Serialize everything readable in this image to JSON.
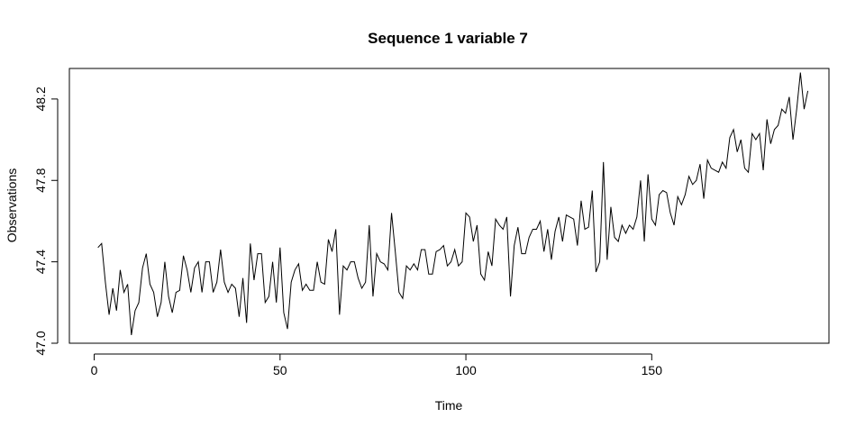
{
  "chart_data": {
    "type": "line",
    "title": "Sequence  1  variable  7",
    "xlabel": "Time",
    "ylabel": "Observations",
    "xlim": [
      -6.68,
      197.68
    ],
    "ylim": [
      47.0,
      48.35
    ],
    "xticks": [
      0,
      50,
      100,
      150
    ],
    "xtick_labels": [
      "0",
      "50",
      "100",
      "150"
    ],
    "yticks": [
      47.0,
      47.4,
      47.8,
      48.2
    ],
    "ytick_labels": [
      "47.0",
      "47.4",
      "47.8",
      "48.2"
    ],
    "grid": false,
    "series": [
      {
        "x": [
          1,
          2,
          3,
          4,
          5,
          6,
          7,
          8,
          9,
          10,
          11,
          12,
          13,
          14,
          15,
          16,
          17,
          18,
          19,
          20,
          21,
          22,
          23,
          24,
          25,
          26,
          27,
          28,
          29,
          30,
          31,
          32,
          33,
          34,
          35,
          36,
          37,
          38,
          39,
          40,
          41,
          42,
          43,
          44,
          45,
          46,
          47,
          48,
          49,
          50,
          51,
          52,
          53,
          54,
          55,
          56,
          57,
          58,
          59,
          60,
          61,
          62,
          63,
          64,
          65,
          66,
          67,
          68,
          69,
          70,
          71,
          72,
          73,
          74,
          75,
          76,
          77,
          78,
          79,
          80,
          81,
          82,
          83,
          84,
          85,
          86,
          87,
          88,
          89,
          90,
          91,
          92,
          93,
          94,
          95,
          96,
          97,
          98,
          99,
          100,
          101,
          102,
          103,
          104,
          105,
          106,
          107,
          108,
          109,
          110,
          111,
          112,
          113,
          114,
          115,
          116,
          117,
          118,
          119,
          120,
          121,
          122,
          123,
          124,
          125,
          126,
          127,
          128,
          129,
          130,
          131,
          132,
          133,
          134,
          135,
          136,
          137,
          138,
          139,
          140,
          141,
          142,
          143,
          144,
          145,
          146,
          147,
          148,
          149,
          150,
          151,
          152,
          153,
          154,
          155,
          156,
          157,
          158,
          159,
          160,
          161,
          162,
          163,
          164,
          165,
          166,
          167,
          168,
          169,
          170,
          171,
          172,
          173,
          174,
          175,
          176,
          177,
          178,
          179,
          180,
          181,
          182,
          183,
          184,
          185,
          186,
          187,
          188,
          189,
          190,
          191,
          192
        ],
        "y": [
          47.47,
          47.49,
          47.3,
          47.14,
          47.27,
          47.16,
          47.36,
          47.25,
          47.29,
          47.04,
          47.16,
          47.2,
          47.37,
          47.44,
          47.29,
          47.25,
          47.13,
          47.2,
          47.4,
          47.23,
          47.15,
          47.25,
          47.26,
          47.43,
          47.36,
          47.25,
          47.37,
          47.4,
          47.25,
          47.4,
          47.4,
          47.25,
          47.3,
          47.46,
          47.3,
          47.25,
          47.29,
          47.27,
          47.13,
          47.32,
          47.1,
          47.49,
          47.31,
          47.44,
          47.44,
          47.2,
          47.23,
          47.4,
          47.2,
          47.47,
          47.15,
          47.07,
          47.3,
          47.36,
          47.39,
          47.26,
          47.29,
          47.26,
          47.26,
          47.4,
          47.3,
          47.29,
          47.51,
          47.45,
          47.56,
          47.14,
          47.38,
          47.36,
          47.4,
          47.4,
          47.32,
          47.27,
          47.3,
          47.58,
          47.23,
          47.44,
          47.4,
          47.39,
          47.36,
          47.64,
          47.45,
          47.25,
          47.22,
          47.38,
          47.36,
          47.39,
          47.36,
          47.46,
          47.46,
          47.34,
          47.34,
          47.45,
          47.46,
          47.48,
          47.38,
          47.4,
          47.46,
          47.38,
          47.4,
          47.64,
          47.62,
          47.5,
          47.58,
          47.34,
          47.31,
          47.45,
          47.38,
          47.61,
          47.58,
          47.56,
          47.62,
          47.23,
          47.48,
          47.57,
          47.44,
          47.44,
          47.52,
          47.56,
          47.56,
          47.6,
          47.45,
          47.56,
          47.41,
          47.55,
          47.62,
          47.5,
          47.63,
          47.62,
          47.61,
          47.48,
          47.7,
          47.56,
          47.57,
          47.75,
          47.35,
          47.4,
          47.89,
          47.41,
          47.67,
          47.52,
          47.5,
          47.58,
          47.54,
          47.58,
          47.56,
          47.62,
          47.8,
          47.5,
          47.83,
          47.61,
          47.58,
          47.73,
          47.75,
          47.74,
          47.64,
          47.58,
          47.72,
          47.68,
          47.73,
          47.82,
          47.78,
          47.8,
          47.88,
          47.71,
          47.9,
          47.86,
          47.85,
          47.84,
          47.89,
          47.86,
          48.01,
          48.05,
          47.94,
          48.0,
          47.86,
          47.84,
          48.03,
          48.0,
          48.03,
          47.85,
          48.1,
          47.98,
          48.05,
          48.07,
          48.15,
          48.13,
          48.21,
          48.0,
          48.15,
          48.33,
          48.15,
          48.24
        ]
      }
    ]
  }
}
